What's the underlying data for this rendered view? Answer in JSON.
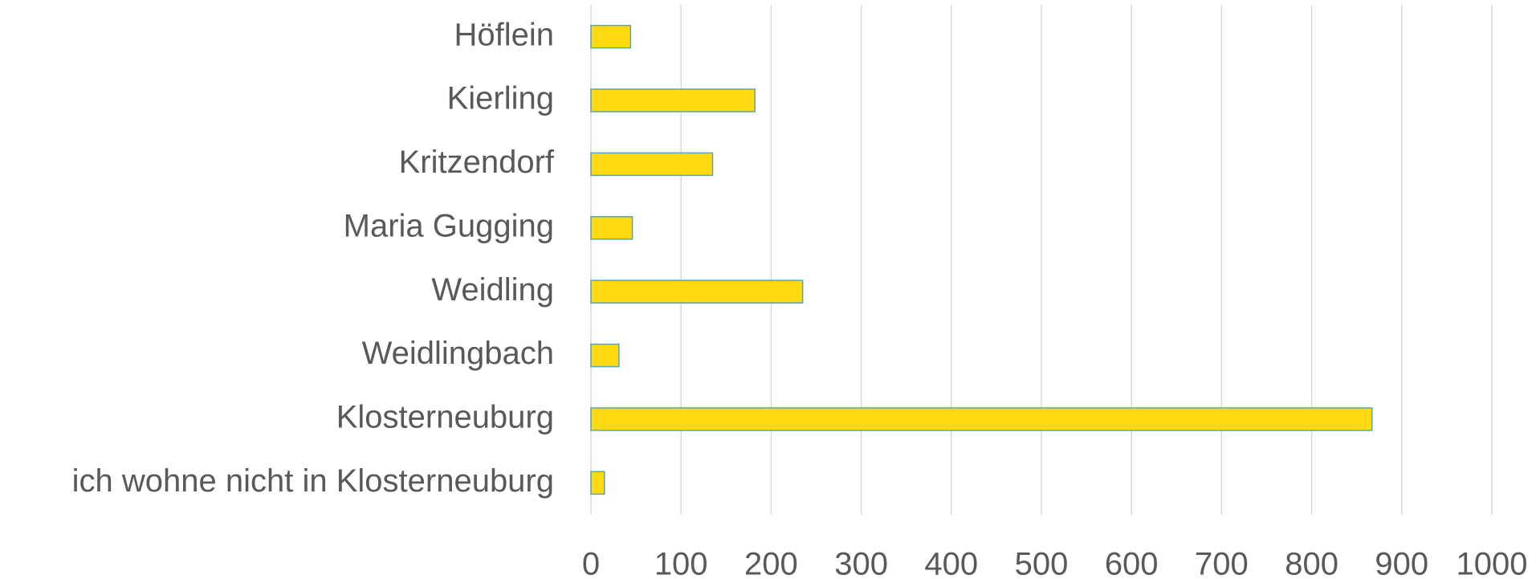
{
  "chart_data": {
    "type": "barh",
    "categories": [
      "Höflein",
      "Kierling",
      "Kritzendorf",
      "Maria Gugging",
      "Weidling",
      "Weidlingbach",
      "Klosterneuburg",
      "ich wohne nicht in Klosterneuburg"
    ],
    "values": [
      44,
      182,
      135,
      46,
      235,
      31,
      867,
      15
    ],
    "color": "#ffd912",
    "edge_color": "#5ba3b5",
    "xlim": [
      0,
      1000
    ],
    "xticks": [
      0,
      100,
      200,
      300,
      400,
      500,
      600,
      700,
      800,
      900,
      1000
    ],
    "grid": true
  }
}
